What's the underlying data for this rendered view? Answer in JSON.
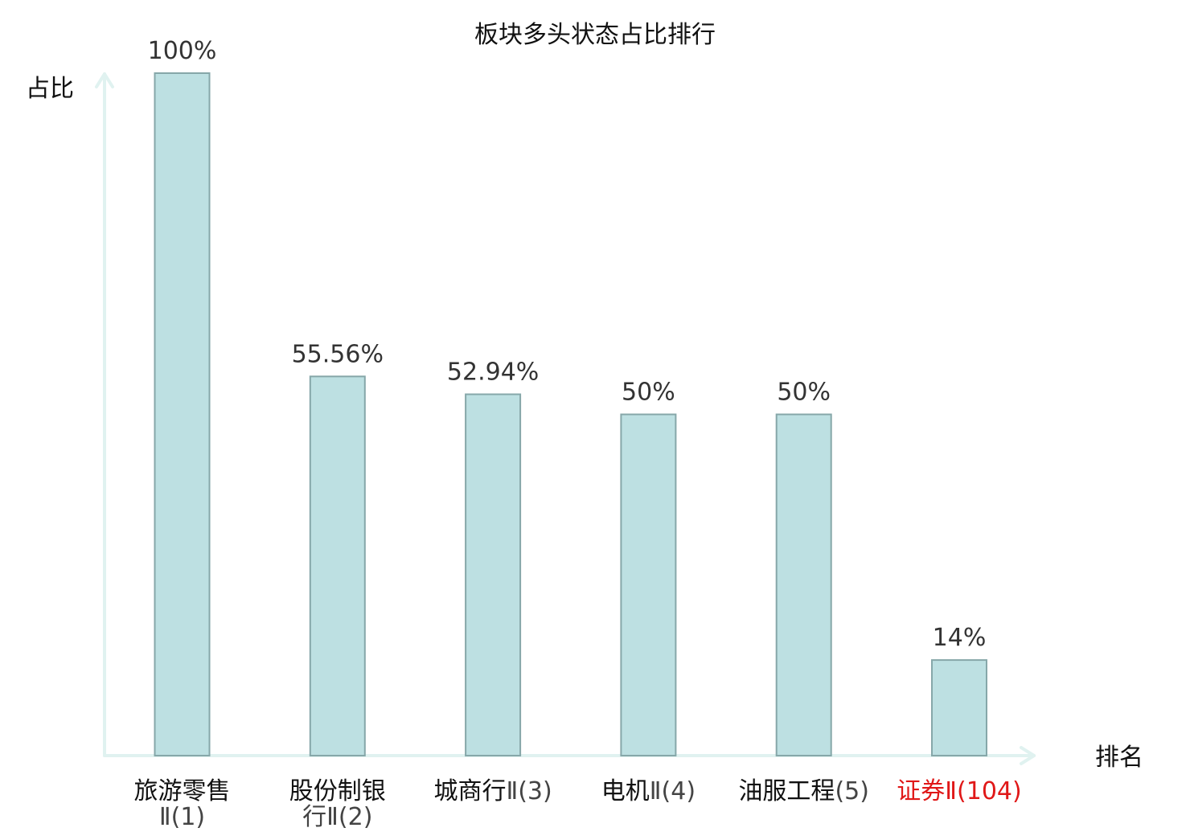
{
  "chart_data": {
    "type": "bar",
    "title": "板块多头状态占比排行",
    "ylabel": "占比",
    "xlabel": "排名",
    "ylim": [
      0,
      100
    ],
    "grid": false,
    "categories": [
      {
        "name": "旅游零售",
        "suffix": "Ⅱ(1)",
        "highlight": false
      },
      {
        "name": "股份制银",
        "suffix": "行Ⅱ(2)",
        "highlight": false
      },
      {
        "name": "城商行",
        "suffix": "Ⅱ(3)",
        "highlight": false
      },
      {
        "name": "电机",
        "suffix": "Ⅱ(4)",
        "highlight": false
      },
      {
        "name": "油服工程",
        "suffix": "(5)",
        "highlight": false
      },
      {
        "name": "证券",
        "suffix": "Ⅱ(104)",
        "highlight": true
      }
    ],
    "values": [
      100,
      55.56,
      52.94,
      50,
      50,
      14
    ],
    "value_labels": [
      "100%",
      "55.56%",
      "52.94%",
      "50%",
      "50%",
      "14%"
    ]
  },
  "colors": {
    "bar_fill": "#bde0e2",
    "bar_stroke": "#86a7a9",
    "axis": "#e0f2f0",
    "highlight_text": "#e01818",
    "name_text": "#111111",
    "suffix_text": "#444444"
  }
}
